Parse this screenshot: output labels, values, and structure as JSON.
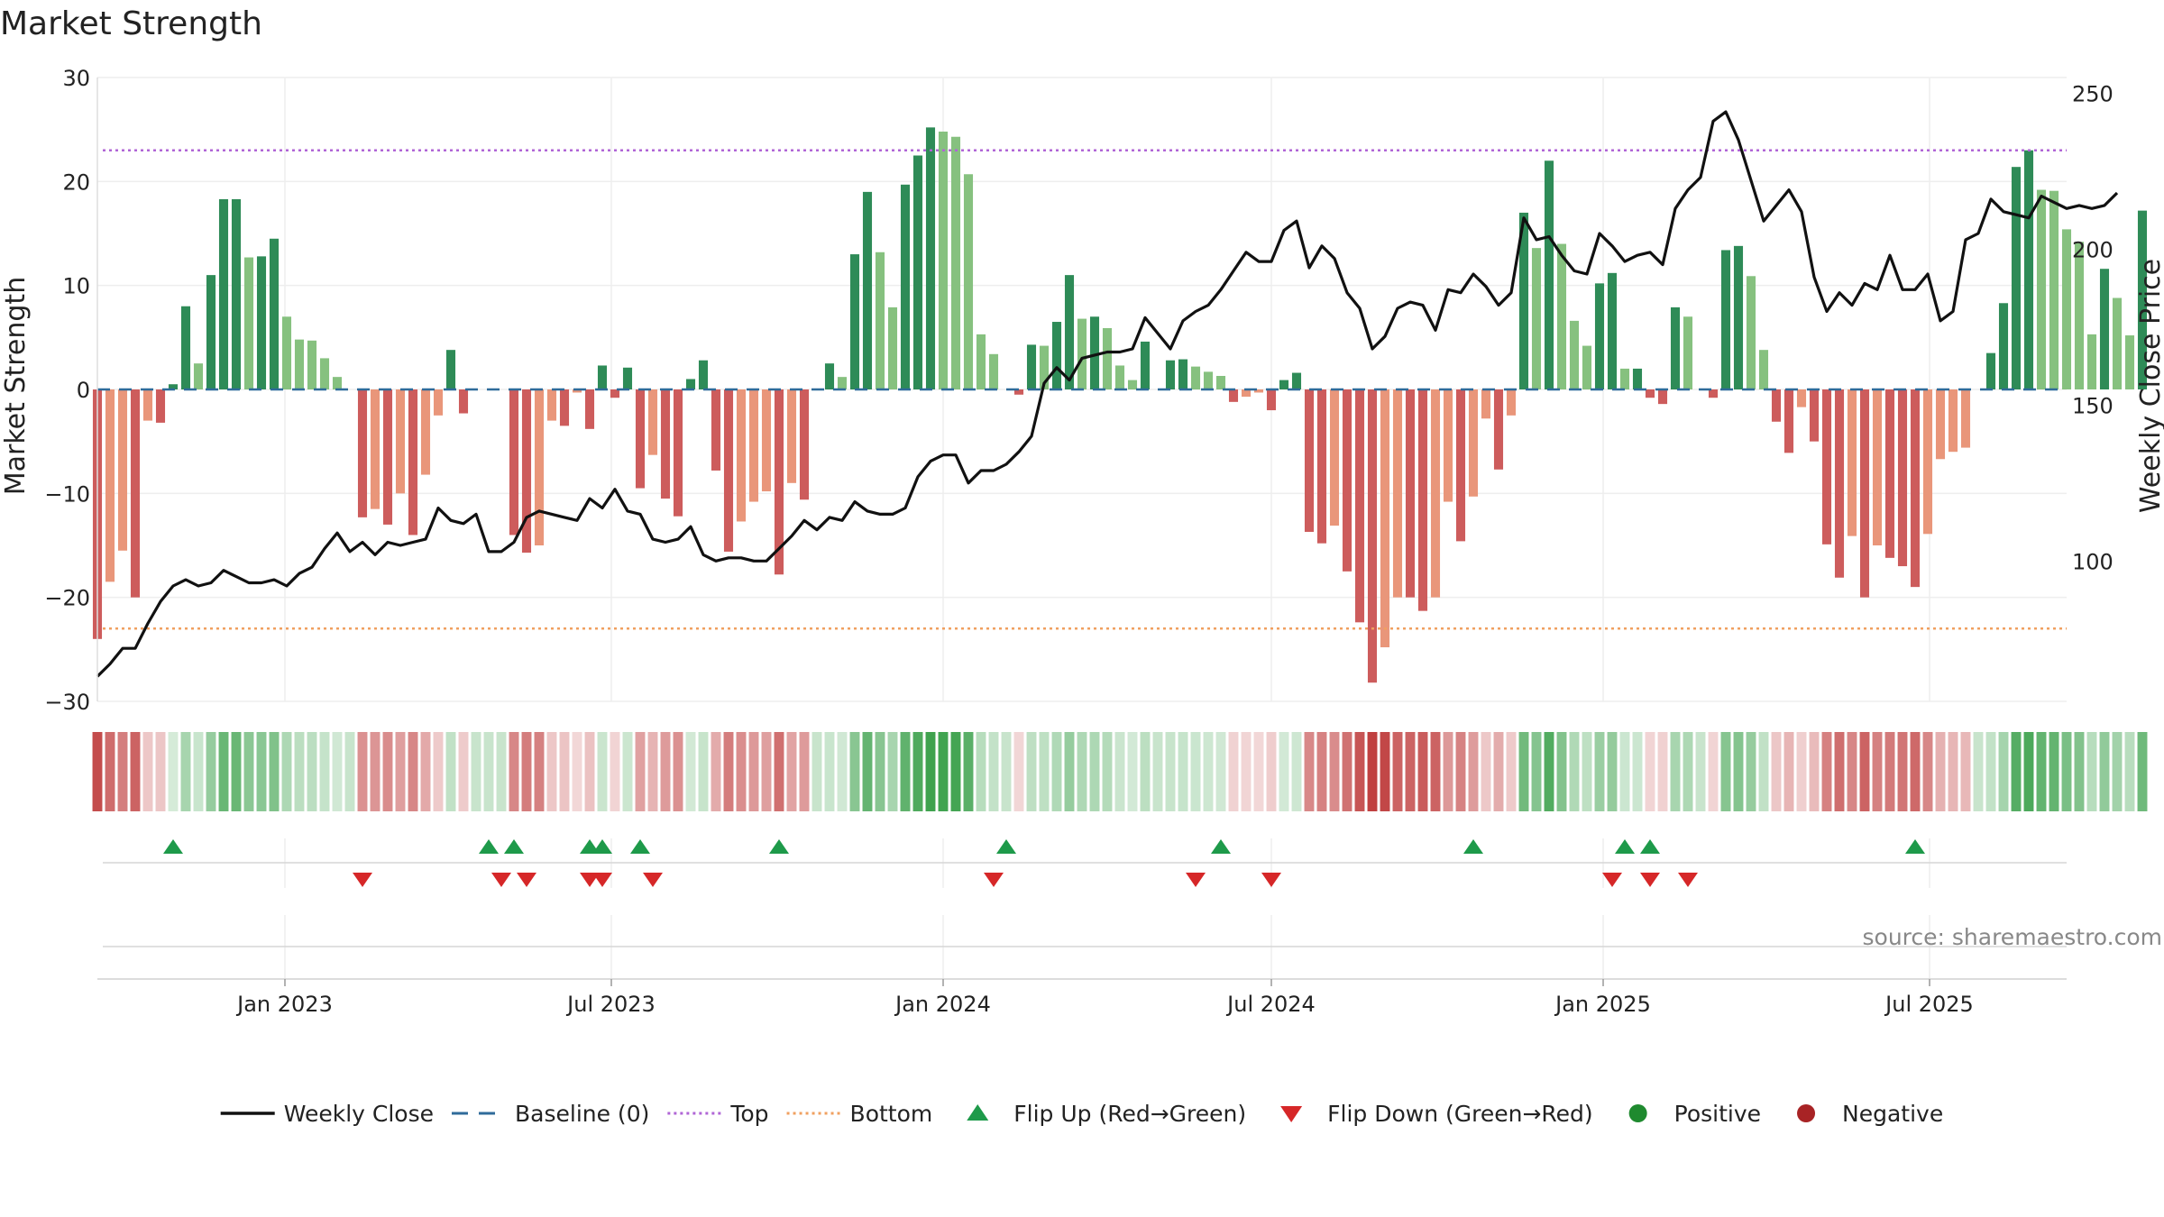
{
  "chart_data": {
    "type": "bar",
    "title": "Market Strength",
    "ylabel": "Market Strength",
    "y2label": "Weekly Close Price",
    "source": "source: sharemaestro.com",
    "ylim": [
      -30,
      30
    ],
    "y2lim": [
      55,
      255
    ],
    "yticks": [
      {
        "value": 30,
        "label": "30"
      },
      {
        "value": 20,
        "label": "20"
      },
      {
        "value": 10,
        "label": "10"
      },
      {
        "value": 0,
        "label": "0"
      },
      {
        "value": -10,
        "label": "−10"
      },
      {
        "value": -20,
        "label": "−20"
      },
      {
        "value": -30,
        "label": "−30"
      }
    ],
    "y2ticks": [
      {
        "value": 250,
        "label": "250"
      },
      {
        "value": 200,
        "label": "200"
      },
      {
        "value": 150,
        "label": "150"
      },
      {
        "value": 100,
        "label": "100"
      }
    ],
    "x_range": [
      "2022-09-19",
      "2025-09-15"
    ],
    "xticks": [
      {
        "date": "2023-01-01",
        "label": "Jan 2023"
      },
      {
        "date": "2023-07-01",
        "label": "Jul 2023"
      },
      {
        "date": "2024-01-01",
        "label": "Jan 2024"
      },
      {
        "date": "2024-07-01",
        "label": "Jul 2024"
      },
      {
        "date": "2025-01-01",
        "label": "Jan 2025"
      },
      {
        "date": "2025-07-01",
        "label": "Jul 2025"
      }
    ],
    "top_threshold": 23,
    "bottom_threshold": -23,
    "weeks": {
      "start": "2022-09-19",
      "interval_days": 7,
      "strength": [
        -24,
        -18.5,
        -15.5,
        -20,
        -3,
        -3.2,
        0.5,
        8,
        2.5,
        11,
        18.3,
        18.3,
        12.7,
        12.8,
        14.5,
        7,
        4.8,
        4.7,
        3,
        1.2,
        0,
        -12.3,
        -11.5,
        -13,
        -10,
        -14,
        -8.2,
        -2.5,
        3.8,
        -2.3,
        0,
        0,
        0,
        -14,
        -15.7,
        -15,
        -3,
        -3.5,
        -0.3,
        -3.8,
        2.3,
        -0.8,
        2.1,
        -9.5,
        -6.3,
        -10.5,
        -12.2,
        1,
        2.8,
        -7.8,
        -15.6,
        -12.7,
        -10.8,
        -9.8,
        -17.8,
        -9,
        -10.6,
        0,
        2.5,
        1.2,
        13,
        19,
        13.2,
        7.9,
        19.7,
        22.5,
        25.2,
        24.8,
        24.3,
        20.7,
        5.3,
        3.4,
        0,
        -0.5,
        4.3,
        4.2,
        6.5,
        11,
        6.8,
        7,
        5.9,
        2.3,
        0.9,
        4.6,
        0,
        2.8,
        2.9,
        2.2,
        1.7,
        1.3,
        -1.2,
        -0.7,
        -0.3,
        -2,
        0.9,
        1.6,
        -13.7,
        -14.8,
        -13.1,
        -17.5,
        -22.4,
        -28.2,
        -24.8,
        -20,
        -20,
        -21.3,
        -20,
        -10.8,
        -14.6,
        -10.3,
        -2.8,
        -7.7,
        -2.5,
        17,
        13.6,
        22,
        14,
        6.6,
        4.2,
        10.2,
        11.2,
        2,
        2,
        -0.8,
        -1.4,
        7.9,
        7,
        0,
        -0.8,
        13.4,
        13.8,
        10.9,
        3.8,
        -3.1,
        -6.1,
        -1.7,
        -5,
        -14.9,
        -18.1,
        -14.1,
        -20,
        -15,
        -16.2,
        -17,
        -19,
        -13.9,
        -6.7,
        -6,
        -5.6,
        0,
        3.5,
        8.3,
        21.4,
        23,
        19.2,
        19.1,
        15.4,
        14.2,
        5.3,
        11.6,
        8.8,
        5.2,
        17.2
      ],
      "close": [
        63,
        67,
        72,
        72,
        80,
        87,
        92,
        94,
        92,
        93,
        97,
        95,
        93,
        93,
        94,
        92,
        96,
        98,
        104,
        109,
        103,
        106,
        102,
        106,
        105,
        106,
        107,
        117,
        113,
        112,
        115,
        103,
        103,
        106,
        114,
        116,
        115,
        114,
        113,
        120,
        117,
        123,
        116,
        115,
        107,
        106,
        107,
        111,
        102,
        100,
        101,
        101,
        100,
        100,
        104,
        108,
        113,
        110,
        114,
        113,
        119,
        116,
        115,
        115,
        117,
        127,
        132,
        134,
        134,
        125,
        129,
        129,
        131,
        135,
        140,
        157,
        162,
        158,
        165,
        166,
        167,
        167,
        168,
        178,
        173,
        168,
        177,
        180,
        182,
        187,
        193,
        199,
        196,
        196,
        206,
        209,
        194,
        201,
        197,
        186,
        181,
        168,
        172,
        181,
        183,
        182,
        174,
        187,
        186,
        192,
        188,
        182,
        186,
        210,
        203,
        204,
        198,
        193,
        192,
        205,
        201,
        196,
        198,
        199,
        195,
        213,
        219,
        223,
        241,
        244,
        235,
        222,
        209,
        214,
        219,
        212,
        191,
        180,
        186,
        182,
        189,
        187,
        198,
        187,
        187,
        192,
        177,
        180,
        203,
        205,
        216,
        212,
        211,
        210,
        217,
        215,
        213,
        214,
        213,
        214,
        218
      ]
    },
    "flip_up_dates": [
      "2022-10-31",
      "2023-04-24",
      "2023-05-08",
      "2023-06-19",
      "2023-06-26",
      "2023-07-17",
      "2023-10-02",
      "2024-02-05",
      "2024-06-03",
      "2024-10-21",
      "2025-01-13",
      "2025-01-27",
      "2025-06-23"
    ],
    "flip_down_dates": [
      "2023-02-13",
      "2023-05-01",
      "2023-05-15",
      "2023-06-19",
      "2023-06-26",
      "2023-07-24",
      "2024-01-29",
      "2024-05-20",
      "2024-07-01",
      "2025-01-06",
      "2025-01-27",
      "2025-02-17"
    ],
    "legend": [
      {
        "label": "Weekly Close",
        "marker": "line",
        "color": "#111111"
      },
      {
        "label": "Baseline (0)",
        "marker": "dash",
        "color": "#2f6b9a"
      },
      {
        "label": "Top",
        "marker": "dot",
        "color": "#b065d6"
      },
      {
        "label": "Bottom",
        "marker": "dot",
        "color": "#f0a060"
      },
      {
        "label": "Flip Up (Red→Green)",
        "marker": "triangle-up",
        "color": "#1e9a4a"
      },
      {
        "label": "Flip Down (Green→Red)",
        "marker": "triangle-down",
        "color": "#d62728"
      },
      {
        "label": "Positive",
        "marker": "circle",
        "color": "#1f8a2f"
      },
      {
        "label": "Negative",
        "marker": "circle",
        "color": "#a82325"
      }
    ],
    "legend_position": "bottom-center",
    "colors": {
      "pos_strong": "#2e8b57",
      "pos_weak": "#86c17f",
      "neg_strong": "#cd5c5c",
      "neg_weak": "#e9967a",
      "close_line": "#111111",
      "baseline": "#2f6b9a",
      "top_line": "#b065d6",
      "bottom_line": "#f0a060",
      "flip_up": "#1e9a4a",
      "flip_down": "#d62728",
      "grid": "#eeeeee"
    },
    "grid": true
  }
}
